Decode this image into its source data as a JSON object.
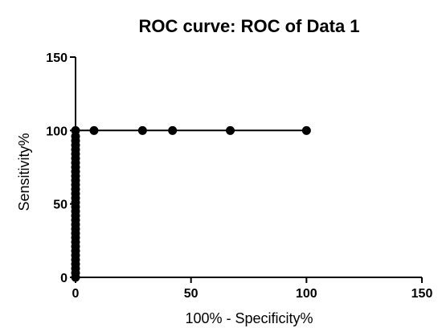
{
  "chart_data": {
    "type": "line",
    "title": "ROC curve: ROC of Data 1",
    "xlabel": "100% - Specificity%",
    "ylabel": "Sensitivity%",
    "xlim": [
      0,
      150
    ],
    "ylim": [
      0,
      150
    ],
    "x_ticks": [
      0,
      50,
      100,
      150
    ],
    "y_ticks": [
      0,
      50,
      100,
      150
    ],
    "x_tick_labels": [
      "0",
      "50",
      "100",
      "150"
    ],
    "y_tick_labels": [
      "0",
      "50",
      "100",
      "150"
    ],
    "grid": false,
    "series": [
      {
        "marker": "circle",
        "color": "#000000",
        "points": [
          [
            0,
            0
          ],
          [
            0,
            3
          ],
          [
            0,
            6
          ],
          [
            0,
            9
          ],
          [
            0,
            12
          ],
          [
            0,
            15
          ],
          [
            0,
            18
          ],
          [
            0,
            21
          ],
          [
            0,
            24
          ],
          [
            0,
            27
          ],
          [
            0,
            30
          ],
          [
            0,
            33
          ],
          [
            0,
            36
          ],
          [
            0,
            39
          ],
          [
            0,
            42
          ],
          [
            0,
            45
          ],
          [
            0,
            48
          ],
          [
            0,
            51
          ],
          [
            0,
            54
          ],
          [
            0,
            57
          ],
          [
            0,
            60
          ],
          [
            0,
            63
          ],
          [
            0,
            66
          ],
          [
            0,
            69
          ],
          [
            0,
            72
          ],
          [
            0,
            75
          ],
          [
            0,
            78
          ],
          [
            0,
            81
          ],
          [
            0,
            84
          ],
          [
            0,
            87
          ],
          [
            0,
            90
          ],
          [
            0,
            93
          ],
          [
            0,
            96
          ],
          [
            0,
            100
          ],
          [
            8,
            100
          ],
          [
            29,
            100
          ],
          [
            42,
            100
          ],
          [
            67,
            100
          ],
          [
            100,
            100
          ]
        ]
      }
    ]
  }
}
